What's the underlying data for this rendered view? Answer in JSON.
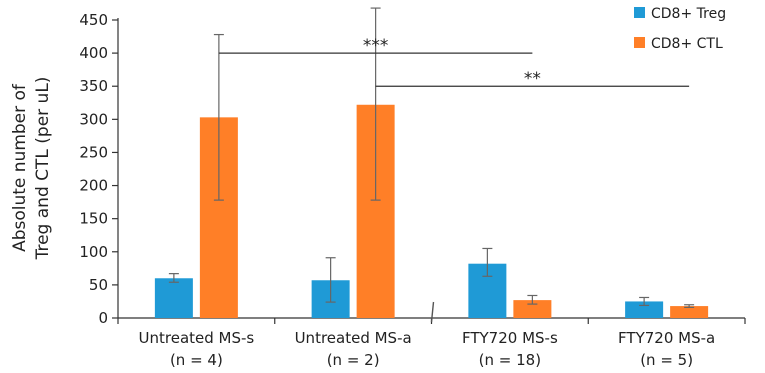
{
  "chart_data": {
    "type": "bar",
    "title": "",
    "xlabel": "",
    "ylabel_lines": [
      "Absolute number of",
      "Treg and CTL (per uL)"
    ],
    "ylim": [
      0,
      450
    ],
    "yticks": [
      0,
      50,
      100,
      150,
      200,
      250,
      300,
      350,
      400,
      450
    ],
    "grid": false,
    "legend_position": "top-right",
    "categories": [
      {
        "line1": "Untreated MS-s",
        "line2": "(n = 4)"
      },
      {
        "line1": "Untreated MS-a",
        "line2": "(n = 2)"
      },
      {
        "line1": "FTY720 MS-s",
        "line2": "(n = 18)"
      },
      {
        "line1": "FTY720 MS-a",
        "line2": "(n = 5)"
      }
    ],
    "series": [
      {
        "name": "CD8+ Treg",
        "color": "#1f9ad6",
        "values": [
          60,
          57,
          82,
          25
        ],
        "error_low": [
          54,
          24,
          63,
          19
        ],
        "error_high": [
          67,
          91,
          105,
          31
        ]
      },
      {
        "name": "CD8+ CTL",
        "color": "#ff7f27",
        "values": [
          303,
          322,
          27,
          18
        ],
        "error_low": [
          178,
          178,
          21,
          16
        ],
        "error_high": [
          428,
          468,
          34,
          20
        ]
      }
    ],
    "annotations": [
      {
        "text": "***",
        "from_category": 0,
        "to_category": 2,
        "y": 400
      },
      {
        "text": "**",
        "from_category": 1,
        "to_category": 3,
        "y": 350
      }
    ]
  }
}
